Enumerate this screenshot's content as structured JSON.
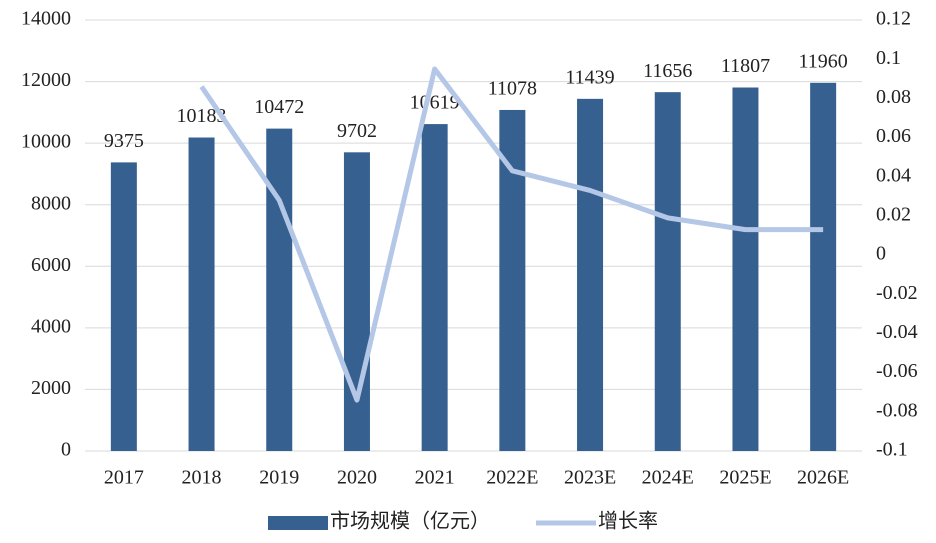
{
  "chart_data": {
    "type": "bar_line",
    "categories": [
      "2017",
      "2018",
      "2019",
      "2020",
      "2021",
      "2022E",
      "2023E",
      "2024E",
      "2025E",
      "2026E"
    ],
    "series": [
      {
        "name": "市场规模（亿元）",
        "type": "bar",
        "color": "#35608f",
        "values": [
          9375,
          10183,
          10472,
          9702,
          10619,
          11078,
          11439,
          11656,
          11807,
          11960
        ]
      },
      {
        "name": "增长率",
        "type": "line",
        "axis": "y2",
        "color": "#b4c7e7",
        "values": [
          null,
          0.086,
          0.028,
          -0.074,
          0.095,
          0.043,
          0.033,
          0.019,
          0.013,
          0.013
        ]
      }
    ],
    "ylim": [
      0,
      14000
    ],
    "yticks": [
      0,
      2000,
      4000,
      6000,
      8000,
      10000,
      12000,
      14000
    ],
    "y2lim": [
      -0.1,
      0.12
    ],
    "y2ticks": [
      -0.1,
      -0.08,
      -0.06,
      -0.04,
      -0.02,
      0,
      0.02,
      0.04,
      0.06,
      0.08,
      0.1,
      0.12
    ],
    "grid": true,
    "legend": "bottom"
  }
}
